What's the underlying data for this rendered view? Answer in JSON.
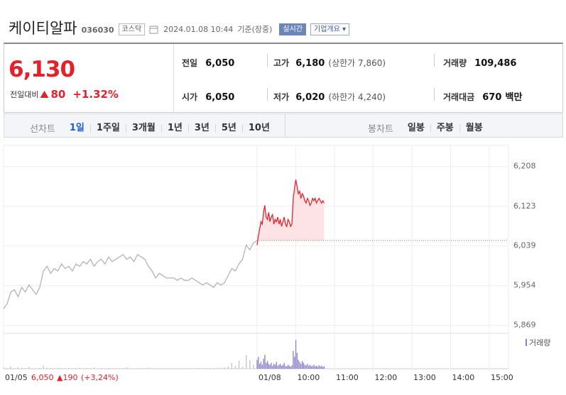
{
  "header": {
    "name": "케이티알파",
    "code": "036030",
    "market": "코스닥",
    "datetime": "2024.01.08 10:44",
    "basis": "기준(장중)",
    "realtime": "실시간",
    "overview": "기업개요"
  },
  "quote": {
    "price": "6,130",
    "change_label": "전일대비",
    "change": "80",
    "change_pct": "+1.32%"
  },
  "stats": [
    [
      {
        "label": "전일",
        "value": "6,050"
      },
      {
        "label": "고가",
        "value": "6,180",
        "note": "(상한가 7,860)"
      },
      {
        "label": "거래량",
        "value": "109,486"
      }
    ],
    [
      {
        "label": "시가",
        "value": "6,050"
      },
      {
        "label": "저가",
        "value": "6,020",
        "note": "(하한가 4,240)"
      },
      {
        "label": "거래대금",
        "value": "670",
        "unit": "백만"
      }
    ]
  ],
  "tabs": {
    "line_label": "선차트",
    "line_tabs": [
      "1일",
      "1주일",
      "3개월",
      "1년",
      "3년",
      "5년",
      "10년"
    ],
    "candle_label": "봉차트",
    "candle_tabs": [
      "일봉",
      "주봉",
      "월봉"
    ]
  },
  "chart": {
    "type": "line",
    "ylim": [
      5855,
      6253
    ],
    "yticks": [
      {
        "value": 6208,
        "label": "6,208"
      },
      {
        "value": 6123,
        "label": "6,123"
      },
      {
        "value": 6039,
        "label": "6,039"
      },
      {
        "value": 5954,
        "label": "5,954"
      },
      {
        "value": 5869,
        "label": "5,869"
      }
    ],
    "grid": true,
    "base": 6050,
    "x_labels": [
      "01/05",
      "01/08",
      "10:00",
      "11:00",
      "12:00",
      "13:00",
      "14:00",
      "15:00"
    ],
    "series": [
      {
        "color": "#b4b4b4",
        "values": [
          5905,
          5915,
          5940,
          5945,
          5930,
          5950,
          5940,
          5955,
          5945,
          5935,
          5950,
          5985,
          5995,
          5980,
          5990,
          5985,
          6000,
          5990,
          5995,
          5985,
          6000,
          5995,
          6005,
          6000,
          6010,
          5995,
          6005,
          6010,
          6000,
          6015,
          6005,
          6010,
          6015,
          6020,
          6010,
          6015,
          6005,
          6020,
          6015,
          6010,
          5995,
          5985,
          5970,
          5980,
          5975,
          5970,
          5970,
          5970,
          5965,
          5970,
          5965,
          5965,
          5970,
          5965,
          5960,
          5955,
          5960,
          5955,
          5950,
          5960,
          5955,
          5960,
          5975,
          5990,
          5985,
          6000,
          6010,
          6040,
          6030,
          6045,
          6050
        ]
      },
      {
        "color": "#e8232b",
        "values": [
          6040,
          6060,
          6075,
          6090,
          6085,
          6110,
          6125,
          6100,
          6095,
          6110,
          6090,
          6100,
          6105,
          6085,
          6095,
          6090,
          6100,
          6085,
          6095,
          6080,
          6090,
          6100,
          6085,
          6080,
          6095,
          6090,
          6080,
          6085,
          6140,
          6160,
          6180,
          6165,
          6150,
          6155,
          6140,
          6150,
          6145,
          6135,
          6130,
          6140,
          6135,
          6125,
          6130,
          6140,
          6135,
          6140,
          6130,
          6135,
          6140,
          6135,
          6130,
          6135,
          6130
        ]
      }
    ],
    "volume": {
      "name": "거래량",
      "ylim": [
        0,
        30000
      ],
      "series": [
        {
          "color": "#c4c4c4",
          "values": [
            1200,
            800,
            2500,
            600,
            1500,
            900,
            700,
            1800,
            600,
            500,
            900,
            3500,
            1200,
            800,
            600,
            1000,
            700,
            500,
            900,
            600,
            700,
            1100,
            500,
            800,
            600,
            1200,
            400,
            700,
            500,
            900,
            600,
            800,
            500,
            700,
            1500,
            600,
            400,
            500,
            800,
            600,
            1200,
            500,
            700,
            400,
            600,
            500,
            900,
            400,
            600,
            500,
            700,
            400,
            500,
            600,
            800,
            500,
            700,
            600,
            900,
            1200,
            800,
            1500,
            2500,
            6000,
            3000,
            8000,
            2000,
            14000,
            9000,
            4000,
            6000
          ]
        },
        {
          "color": "#8b80c8",
          "values": [
            9000,
            12000,
            5000,
            7000,
            4000,
            10000,
            14000,
            6000,
            8000,
            5000,
            4000,
            6000,
            3000,
            5000,
            4000,
            7000,
            3000,
            4000,
            5000,
            3000,
            4000,
            6000,
            3000,
            2500,
            4000,
            3000,
            2000,
            3500,
            18000,
            12000,
            29000,
            16000,
            9000,
            7000,
            5000,
            8000,
            6000,
            4000,
            3500,
            5000,
            3000,
            4000,
            2500,
            3000,
            4000,
            2500,
            3000,
            2000,
            3500,
            2500,
            3000,
            2000,
            2500
          ]
        }
      ]
    },
    "summary": {
      "close": "6,050",
      "change": "▲190",
      "pct": "(+3,24%)"
    }
  }
}
